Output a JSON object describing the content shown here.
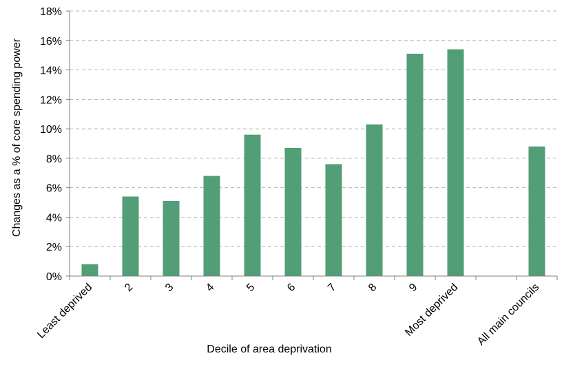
{
  "chart_data": {
    "type": "bar",
    "title": "",
    "xlabel": "Decile of area deprivation",
    "ylabel": "Changes as a % of core spending power",
    "categories": [
      "Least deprived",
      "2",
      "3",
      "4",
      "5",
      "6",
      "7",
      "8",
      "9",
      "Most deprived",
      "",
      "All main councils"
    ],
    "values": [
      0.8,
      5.4,
      5.1,
      6.8,
      9.6,
      8.7,
      7.6,
      10.3,
      15.1,
      15.4,
      null,
      8.8
    ],
    "ylim": [
      0,
      18
    ],
    "yticks": [
      0,
      2,
      4,
      6,
      8,
      10,
      12,
      14,
      16,
      18
    ],
    "ytick_labels": [
      "0%",
      "2%",
      "4%",
      "6%",
      "8%",
      "10%",
      "12%",
      "14%",
      "16%",
      "18%"
    ],
    "grid": true,
    "legend": "none",
    "bar_color": "#529E76",
    "grid_color": "#B3B3B3",
    "axis_color": "#7F7F7F"
  }
}
